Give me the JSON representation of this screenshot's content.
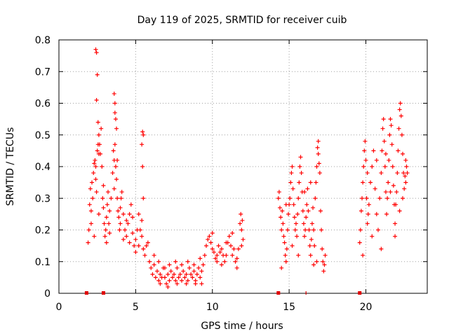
{
  "chart_data": {
    "type": "scatter",
    "title": "Day 119 of 2025, SRMTID for receiver cuib",
    "xlabel": "GPS time / hours",
    "ylabel": "SRMTID / TECUs",
    "xlim": [
      0,
      24
    ],
    "ylim": [
      0,
      0.8
    ],
    "xticks": [
      0,
      5,
      10,
      15,
      20
    ],
    "xtick_labels": [
      "0",
      "5",
      "10",
      "15",
      "20"
    ],
    "yticks": [
      0,
      0.1,
      0.2,
      0.3,
      0.4,
      0.5,
      0.6,
      0.7,
      0.8
    ],
    "ytick_labels": [
      "0",
      "0.1",
      "0.2",
      "0.3",
      "0.4",
      "0.5",
      "0.6",
      "0.7",
      "0.8"
    ],
    "grid": true,
    "marker": "+",
    "color": "#ff0000",
    "series": [
      {
        "name": "SRMTID",
        "points": [
          [
            1.9,
            0.16
          ],
          [
            1.95,
            0.2
          ],
          [
            2.0,
            0.28
          ],
          [
            2.05,
            0.33
          ],
          [
            2.1,
            0.26
          ],
          [
            2.15,
            0.35
          ],
          [
            2.2,
            0.3
          ],
          [
            2.25,
            0.38
          ],
          [
            2.3,
            0.41
          ],
          [
            2.35,
            0.42
          ],
          [
            2.4,
            0.36
          ],
          [
            2.45,
            0.32
          ],
          [
            2.5,
            0.45
          ],
          [
            2.55,
            0.54
          ],
          [
            2.6,
            0.5
          ],
          [
            2.65,
            0.47
          ],
          [
            2.7,
            0.44
          ],
          [
            2.75,
            0.52
          ],
          [
            2.8,
            0.4
          ],
          [
            2.85,
            0.3
          ],
          [
            2.9,
            0.27
          ],
          [
            2.95,
            0.22
          ],
          [
            3.0,
            0.18
          ],
          [
            3.05,
            0.2
          ],
          [
            3.1,
            0.24
          ],
          [
            3.15,
            0.28
          ],
          [
            3.2,
            0.32
          ],
          [
            3.25,
            0.22
          ],
          [
            3.3,
            0.19
          ],
          [
            3.4,
            0.3
          ],
          [
            3.5,
            0.38
          ],
          [
            3.55,
            0.45
          ],
          [
            3.6,
            0.42
          ],
          [
            3.65,
            0.47
          ],
          [
            3.7,
            0.4
          ],
          [
            3.75,
            0.36
          ],
          [
            3.8,
            0.3
          ],
          [
            3.85,
            0.26
          ],
          [
            3.9,
            0.24
          ],
          [
            3.95,
            0.2
          ],
          [
            4.0,
            0.22
          ],
          [
            4.05,
            0.3
          ],
          [
            4.1,
            0.32
          ],
          [
            4.2,
            0.25
          ],
          [
            4.3,
            0.2
          ],
          [
            4.4,
            0.18
          ],
          [
            4.5,
            0.22
          ],
          [
            4.6,
            0.25
          ],
          [
            4.7,
            0.28
          ],
          [
            4.8,
            0.19
          ],
          [
            4.9,
            0.15
          ],
          [
            5.0,
            0.13
          ],
          [
            5.1,
            0.2
          ],
          [
            5.2,
            0.25
          ],
          [
            5.3,
            0.2
          ],
          [
            5.4,
            0.18
          ],
          [
            5.5,
            0.14
          ],
          [
            5.6,
            0.12
          ],
          [
            5.7,
            0.15
          ],
          [
            5.8,
            0.16
          ],
          [
            5.9,
            0.1
          ],
          [
            6.0,
            0.08
          ],
          [
            2.1,
            0.22
          ],
          [
            2.3,
            0.18
          ],
          [
            2.6,
            0.25
          ],
          [
            2.9,
            0.34
          ],
          [
            3.1,
            0.16
          ],
          [
            3.3,
            0.26
          ],
          [
            3.6,
            0.33
          ],
          [
            3.8,
            0.42
          ],
          [
            4.0,
            0.27
          ],
          [
            4.2,
            0.17
          ],
          [
            4.4,
            0.23
          ],
          [
            4.6,
            0.16
          ],
          [
            4.8,
            0.24
          ],
          [
            5.0,
            0.17
          ],
          [
            5.2,
            0.15
          ],
          [
            5.4,
            0.23
          ],
          [
            5.5,
            0.5
          ],
          [
            5.45,
            0.51
          ],
          [
            5.4,
            0.47
          ],
          [
            5.45,
            0.4
          ],
          [
            5.5,
            0.3
          ],
          [
            3.6,
            0.63
          ],
          [
            3.65,
            0.6
          ],
          [
            3.7,
            0.55
          ],
          [
            3.75,
            0.52
          ],
          [
            3.65,
            0.57
          ],
          [
            2.4,
            0.77
          ],
          [
            2.45,
            0.76
          ],
          [
            2.5,
            0.69
          ],
          [
            2.45,
            0.61
          ],
          [
            2.55,
            0.47
          ],
          [
            2.6,
            0.44
          ],
          [
            2.4,
            0.4
          ],
          [
            6.1,
            0.06
          ],
          [
            6.2,
            0.09
          ],
          [
            6.3,
            0.05
          ],
          [
            6.4,
            0.07
          ],
          [
            6.5,
            0.04
          ],
          [
            6.6,
            0.06
          ],
          [
            6.7,
            0.05
          ],
          [
            6.8,
            0.08
          ],
          [
            6.9,
            0.05
          ],
          [
            7.0,
            0.03
          ],
          [
            7.1,
            0.06
          ],
          [
            7.2,
            0.04
          ],
          [
            7.3,
            0.07
          ],
          [
            7.4,
            0.05
          ],
          [
            7.5,
            0.06
          ],
          [
            7.6,
            0.04
          ],
          [
            7.7,
            0.08
          ],
          [
            7.8,
            0.05
          ],
          [
            7.9,
            0.06
          ],
          [
            8.0,
            0.04
          ],
          [
            8.1,
            0.07
          ],
          [
            8.2,
            0.05
          ],
          [
            8.3,
            0.06
          ],
          [
            8.4,
            0.04
          ],
          [
            8.5,
            0.08
          ],
          [
            8.6,
            0.06
          ],
          [
            8.7,
            0.05
          ],
          [
            8.8,
            0.07
          ],
          [
            8.9,
            0.04
          ],
          [
            9.0,
            0.06
          ],
          [
            9.1,
            0.08
          ],
          [
            9.2,
            0.05
          ],
          [
            9.3,
            0.07
          ],
          [
            6.2,
            0.12
          ],
          [
            6.5,
            0.1
          ],
          [
            6.9,
            0.08
          ],
          [
            7.2,
            0.09
          ],
          [
            7.6,
            0.1
          ],
          [
            8.0,
            0.09
          ],
          [
            8.4,
            0.1
          ],
          [
            8.8,
            0.09
          ],
          [
            9.2,
            0.11
          ],
          [
            6.6,
            0.03
          ],
          [
            7.1,
            0.02
          ],
          [
            7.7,
            0.03
          ],
          [
            8.3,
            0.03
          ],
          [
            8.9,
            0.03
          ],
          [
            9.3,
            0.03
          ],
          [
            9.4,
            0.09
          ],
          [
            9.5,
            0.12
          ],
          [
            9.6,
            0.15
          ],
          [
            9.7,
            0.17
          ],
          [
            9.8,
            0.18
          ],
          [
            9.9,
            0.16
          ],
          [
            10.0,
            0.14
          ],
          [
            10.1,
            0.13
          ],
          [
            10.2,
            0.11
          ],
          [
            10.3,
            0.12
          ],
          [
            10.4,
            0.15
          ],
          [
            10.5,
            0.13
          ],
          [
            10.6,
            0.14
          ],
          [
            10.7,
            0.12
          ],
          [
            10.8,
            0.1
          ],
          [
            10.9,
            0.12
          ],
          [
            11.0,
            0.16
          ],
          [
            11.1,
            0.18
          ],
          [
            11.2,
            0.15
          ],
          [
            11.3,
            0.12
          ],
          [
            11.4,
            0.14
          ],
          [
            11.5,
            0.1
          ],
          [
            11.6,
            0.11
          ],
          [
            11.7,
            0.14
          ],
          [
            11.8,
            0.22
          ],
          [
            11.85,
            0.25
          ],
          [
            11.9,
            0.2
          ],
          [
            11.95,
            0.23
          ],
          [
            12.0,
            0.17
          ],
          [
            10.0,
            0.19
          ],
          [
            10.3,
            0.1
          ],
          [
            10.6,
            0.09
          ],
          [
            10.9,
            0.16
          ],
          [
            11.3,
            0.19
          ],
          [
            11.6,
            0.08
          ],
          [
            11.9,
            0.15
          ],
          [
            14.3,
            0.3
          ],
          [
            14.35,
            0.32
          ],
          [
            14.4,
            0.27
          ],
          [
            14.45,
            0.24
          ],
          [
            14.5,
            0.2
          ],
          [
            14.55,
            0.26
          ],
          [
            14.6,
            0.22
          ],
          [
            14.65,
            0.18
          ],
          [
            14.7,
            0.16
          ],
          [
            14.75,
            0.12
          ],
          [
            14.8,
            0.1
          ],
          [
            14.85,
            0.14
          ],
          [
            14.9,
            0.2
          ],
          [
            14.95,
            0.25
          ],
          [
            15.0,
            0.28
          ],
          [
            15.05,
            0.3
          ],
          [
            15.1,
            0.35
          ],
          [
            15.15,
            0.38
          ],
          [
            15.2,
            0.4
          ],
          [
            15.25,
            0.33
          ],
          [
            15.3,
            0.28
          ],
          [
            15.35,
            0.24
          ],
          [
            15.4,
            0.2
          ],
          [
            15.45,
            0.22
          ],
          [
            15.5,
            0.18
          ],
          [
            15.55,
            0.25
          ],
          [
            15.6,
            0.3
          ],
          [
            15.65,
            0.35
          ],
          [
            15.7,
            0.4
          ],
          [
            15.75,
            0.43
          ],
          [
            15.8,
            0.38
          ],
          [
            15.85,
            0.32
          ],
          [
            15.9,
            0.26
          ],
          [
            15.95,
            0.22
          ],
          [
            16.0,
            0.18
          ],
          [
            16.05,
            0.2
          ],
          [
            16.1,
            0.24
          ],
          [
            16.15,
            0.28
          ],
          [
            16.2,
            0.33
          ],
          [
            16.25,
            0.26
          ],
          [
            16.3,
            0.2
          ],
          [
            16.35,
            0.15
          ],
          [
            16.4,
            0.12
          ],
          [
            16.45,
            0.17
          ],
          [
            16.5,
            0.22
          ],
          [
            16.55,
            0.27
          ],
          [
            16.6,
            0.2
          ],
          [
            16.65,
            0.15
          ],
          [
            16.7,
            0.3
          ],
          [
            16.75,
            0.35
          ],
          [
            16.8,
            0.4
          ],
          [
            16.85,
            0.46
          ],
          [
            16.9,
            0.48
          ],
          [
            16.95,
            0.41
          ],
          [
            17.0,
            0.38
          ],
          [
            17.05,
            0.26
          ],
          [
            17.1,
            0.2
          ],
          [
            17.15,
            0.14
          ],
          [
            17.2,
            0.1
          ],
          [
            17.25,
            0.07
          ],
          [
            17.3,
            0.09
          ],
          [
            17.35,
            0.12
          ],
          [
            14.5,
            0.08
          ],
          [
            14.8,
            0.28
          ],
          [
            15.2,
            0.15
          ],
          [
            15.6,
            0.12
          ],
          [
            16.0,
            0.32
          ],
          [
            16.4,
            0.35
          ],
          [
            16.8,
            0.1
          ],
          [
            16.6,
            0.09
          ],
          [
            16.9,
            0.44
          ],
          [
            19.6,
            0.16
          ],
          [
            19.65,
            0.2
          ],
          [
            19.7,
            0.26
          ],
          [
            19.75,
            0.3
          ],
          [
            19.8,
            0.35
          ],
          [
            19.85,
            0.4
          ],
          [
            19.9,
            0.45
          ],
          [
            19.95,
            0.48
          ],
          [
            20.0,
            0.42
          ],
          [
            20.05,
            0.3
          ],
          [
            20.1,
            0.22
          ],
          [
            20.15,
            0.25
          ],
          [
            20.2,
            0.28
          ],
          [
            20.3,
            0.35
          ],
          [
            20.4,
            0.4
          ],
          [
            20.5,
            0.45
          ],
          [
            20.6,
            0.33
          ],
          [
            20.7,
            0.25
          ],
          [
            20.8,
            0.2
          ],
          [
            20.9,
            0.3
          ],
          [
            21.0,
            0.38
          ],
          [
            21.05,
            0.45
          ],
          [
            21.1,
            0.52
          ],
          [
            21.15,
            0.55
          ],
          [
            21.2,
            0.48
          ],
          [
            21.25,
            0.4
          ],
          [
            21.3,
            0.32
          ],
          [
            21.35,
            0.25
          ],
          [
            21.4,
            0.3
          ],
          [
            21.45,
            0.35
          ],
          [
            21.5,
            0.42
          ],
          [
            21.55,
            0.5
          ],
          [
            21.6,
            0.55
          ],
          [
            21.65,
            0.53
          ],
          [
            21.7,
            0.47
          ],
          [
            21.75,
            0.4
          ],
          [
            21.8,
            0.34
          ],
          [
            21.85,
            0.28
          ],
          [
            21.9,
            0.22
          ],
          [
            21.95,
            0.28
          ],
          [
            22.0,
            0.32
          ],
          [
            22.05,
            0.38
          ],
          [
            22.1,
            0.45
          ],
          [
            22.15,
            0.52
          ],
          [
            22.2,
            0.58
          ],
          [
            22.25,
            0.6
          ],
          [
            22.3,
            0.56
          ],
          [
            22.35,
            0.5
          ],
          [
            22.4,
            0.44
          ],
          [
            22.45,
            0.38
          ],
          [
            22.5,
            0.33
          ],
          [
            22.55,
            0.37
          ],
          [
            22.6,
            0.42
          ],
          [
            22.65,
            0.4
          ],
          [
            22.7,
            0.38
          ],
          [
            19.8,
            0.12
          ],
          [
            20.1,
            0.38
          ],
          [
            20.4,
            0.18
          ],
          [
            20.7,
            0.42
          ],
          [
            21.0,
            0.14
          ],
          [
            21.3,
            0.44
          ],
          [
            21.6,
            0.32
          ],
          [
            21.9,
            0.18
          ],
          [
            22.2,
            0.26
          ],
          [
            22.4,
            0.3
          ],
          [
            22.6,
            0.35
          ]
        ]
      }
    ],
    "baseline_markers": [
      1.8,
      2.9,
      14.3,
      19.6
    ],
    "baseline_line_markers": [
      16.1
    ]
  }
}
